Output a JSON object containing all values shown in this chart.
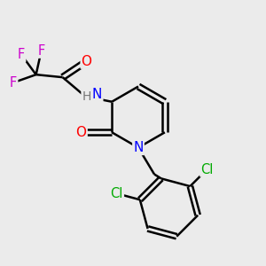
{
  "bg_color": "#ebebeb",
  "atom_colors": {
    "C": "#000000",
    "N": "#0000ff",
    "O": "#ff0000",
    "F": "#cc00cc",
    "Cl": "#00aa00",
    "H": "#777777"
  },
  "bond_color": "#000000",
  "bond_width": 1.8,
  "font_size_atom": 10.5
}
